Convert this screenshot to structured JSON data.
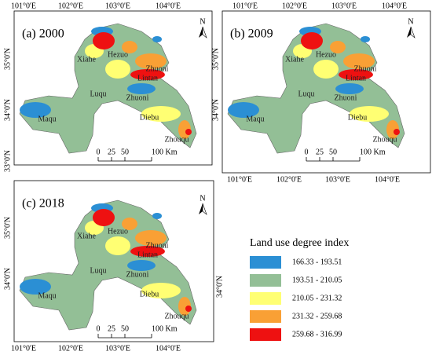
{
  "panels": [
    {
      "title": "(a) 2000",
      "north": "N",
      "lon_top": [
        "101°0'E",
        "102°0'E",
        "103°0'E",
        "104°0'E"
      ],
      "lon_bottom": [],
      "lat_left": [
        "35°0'N",
        "34°0'N",
        "33°0'N"
      ],
      "lat_right": [],
      "places": [
        "Xiahe",
        "Hezuo",
        "Zhuoni",
        "Lintan",
        "Luqu",
        "Zhuoni",
        "Maqu",
        "Diebu",
        "Zhouqu"
      ],
      "scale": [
        "0",
        "25",
        "50",
        "100 Km"
      ]
    },
    {
      "title": "(b) 2009",
      "north": "N",
      "lon_top": [
        "101°0'E",
        "102°0'E",
        "103°0'E",
        "104°0'E"
      ],
      "lon_bottom": [
        "101°0'E",
        "102°0'E",
        "103°0'E",
        "104°0'E"
      ],
      "lat_left": [
        "35°0'N",
        "34°0'N"
      ],
      "lat_right": [
        "35°0'N",
        "34°0'N"
      ],
      "places": [
        "Xiahe",
        "Hezuo",
        "Zhuoni",
        "Lintan",
        "Luqu",
        "Zhuoni",
        "Maqu",
        "Diebu",
        "Zhouqu"
      ],
      "scale": [
        "0",
        "25",
        "50",
        "100 Km"
      ]
    },
    {
      "title": "(c) 2018",
      "north": "N",
      "lon_top": [],
      "lon_bottom": [
        "101°0'E",
        "102°0'E",
        "103°0'E",
        "104°0'E"
      ],
      "lat_left": [
        "35°0'N",
        "34°0'N"
      ],
      "lat_right": [
        "34°0'N"
      ],
      "places": [
        "Xiahe",
        "Hezuo",
        "Zhuoni",
        "Lintan",
        "Luqu",
        "Zhuoni",
        "Maqu",
        "Diebu",
        "Zhouqu"
      ],
      "scale": [
        "0",
        "25",
        "50",
        "100 Km"
      ]
    }
  ],
  "legend": {
    "title": "Land use degree index",
    "items": [
      {
        "label": "166.33 - 193.51",
        "color": "#2b8fd4"
      },
      {
        "label": "193.51 - 210.05",
        "color": "#93bf96"
      },
      {
        "label": "210.05 - 231.32",
        "color": "#ffff73"
      },
      {
        "label": "231.32 - 259.68",
        "color": "#f9a035"
      },
      {
        "label": "259.68 - 316.99",
        "color": "#ee1111"
      }
    ]
  }
}
